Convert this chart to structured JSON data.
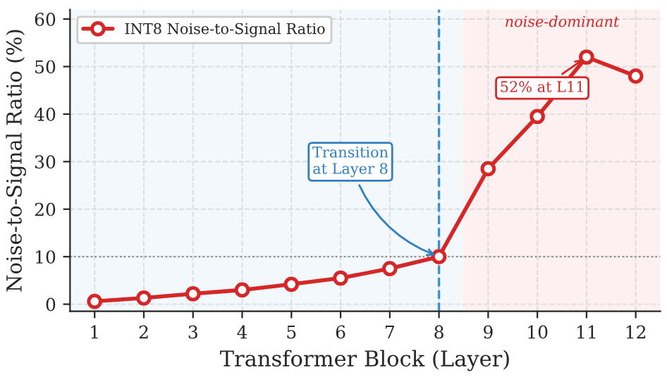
{
  "chart_data": {
    "type": "line",
    "xlabel": "Transformer Block (Layer)",
    "ylabel": "Noise-to-Signal Ratio (%)",
    "x": [
      1,
      2,
      3,
      4,
      5,
      6,
      7,
      8,
      9,
      10,
      11,
      12
    ],
    "series": [
      {
        "name": "INT8 Noise-to-Signal Ratio",
        "color": "#d62728",
        "values": [
          0.6,
          1.3,
          2.2,
          3.0,
          4.2,
          5.5,
          7.5,
          10,
          28.5,
          39.5,
          52,
          48
        ]
      }
    ],
    "xlim": [
      0.5,
      12.5
    ],
    "ylim": [
      -1.5,
      62
    ],
    "xticks": [
      1,
      2,
      3,
      4,
      5,
      6,
      7,
      8,
      9,
      10,
      11,
      12
    ],
    "yticks": [
      0,
      10,
      20,
      30,
      40,
      50,
      60
    ],
    "ref_lines": [
      {
        "axis": "x",
        "value": 8,
        "color": "#3a8fd0",
        "line_style": "dashed"
      },
      {
        "axis": "y",
        "value": 10,
        "color": "#888888",
        "line_style": "dotted"
      }
    ],
    "bands": [
      {
        "axis": "x",
        "from": 0.5,
        "to": 8.5,
        "color": "#eaf3fa"
      },
      {
        "axis": "x",
        "from": 8.5,
        "to": 12.5,
        "color": "#fae6e8",
        "label": "noise-dominant"
      }
    ],
    "annotations": [
      {
        "text": "Transition\nat Layer 8",
        "x": 8,
        "y": 10
      },
      {
        "text": "52% at L11",
        "x": 11,
        "y": 52
      }
    ],
    "grid": true,
    "legend": "top left",
    "marker": "circle",
    "line_style": "solid"
  }
}
